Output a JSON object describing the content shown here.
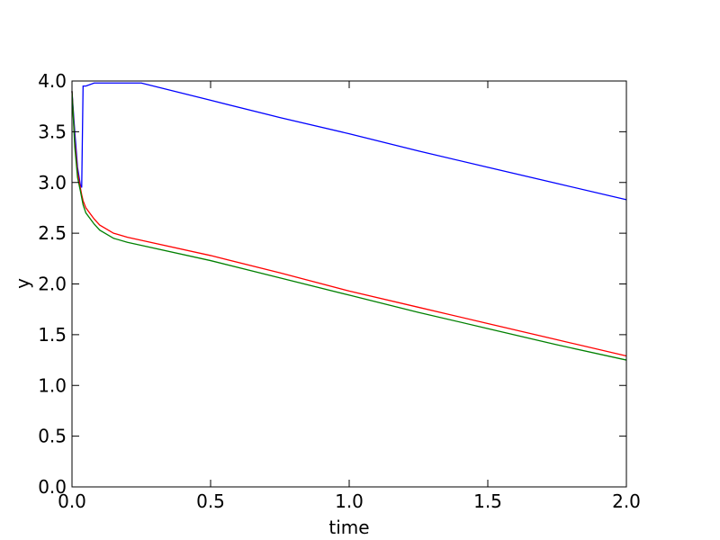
{
  "chart_data": {
    "type": "line",
    "xlabel": "time",
    "ylabel": "y",
    "x": [
      0,
      0.01,
      0.02,
      0.03,
      0.035,
      0.04,
      0.05,
      0.08,
      0.1,
      0.15,
      0.2,
      0.25,
      0.5,
      0.75,
      1.0,
      1.25,
      1.5,
      1.75,
      2.0
    ],
    "series": [
      {
        "color": "#0000ff",
        "values": [
          3.9,
          3.5,
          3.15,
          2.98,
          2.95,
          3.95,
          3.95,
          3.98,
          3.98,
          3.98,
          3.98,
          3.98,
          3.81,
          3.64,
          3.48,
          3.31,
          3.15,
          2.99,
          2.83
        ]
      },
      {
        "color": "#ff0000",
        "values": [
          3.9,
          3.4,
          3.1,
          2.95,
          2.88,
          2.82,
          2.75,
          2.64,
          2.58,
          2.5,
          2.46,
          2.43,
          2.28,
          2.11,
          1.93,
          1.77,
          1.61,
          1.45,
          1.29
        ]
      },
      {
        "color": "#008000",
        "values": [
          3.9,
          3.35,
          3.05,
          2.92,
          2.85,
          2.78,
          2.7,
          2.59,
          2.53,
          2.45,
          2.41,
          2.38,
          2.23,
          2.06,
          1.89,
          1.72,
          1.56,
          1.4,
          1.25
        ]
      }
    ],
    "xlim": [
      0,
      2
    ],
    "xticks": [
      {
        "value": 0,
        "label": "0.0"
      },
      0.5,
      {
        "value": 1,
        "label": "1.0"
      },
      1.5,
      {
        "value": 2,
        "label": "2.0"
      }
    ],
    "ylim": [
      0,
      4
    ],
    "yticks": [
      {
        "value": 0,
        "label": "0.0"
      },
      0.5,
      {
        "value": 1,
        "label": "1.0"
      },
      1.5,
      {
        "value": 2,
        "label": "2.0"
      },
      2.5,
      {
        "value": 3,
        "label": "3.0"
      },
      3.5,
      {
        "value": 4,
        "label": "4.0"
      }
    ],
    "grid": false
  }
}
